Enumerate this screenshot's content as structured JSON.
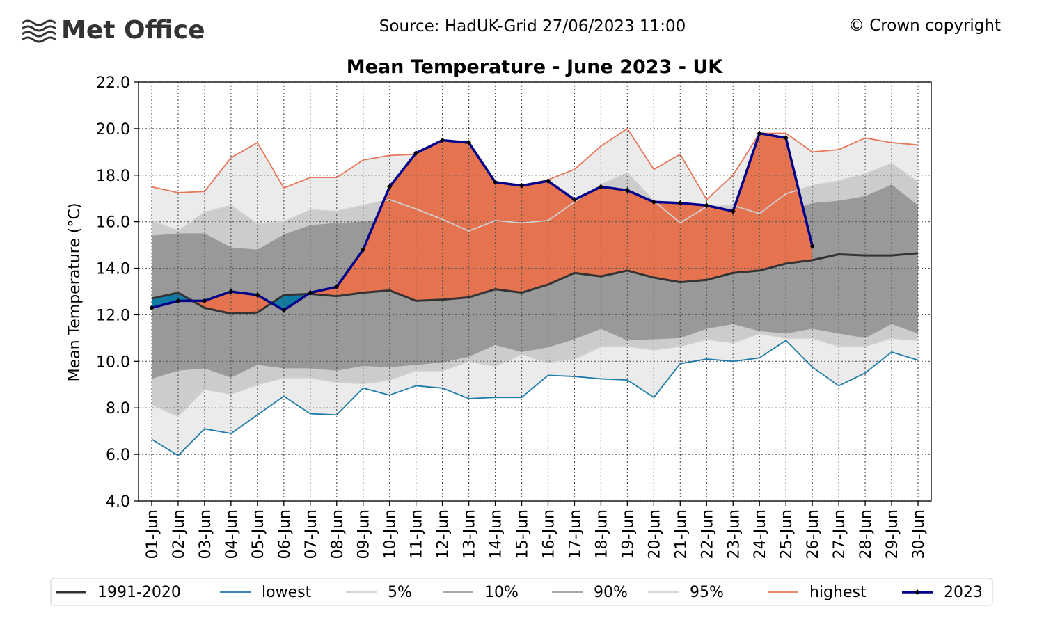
{
  "header": {
    "logo": "Met Office",
    "source": "Source: HadUK-Grid 27/06/2023 11:00",
    "copyright": "© Crown copyright"
  },
  "chart_data": {
    "type": "line",
    "title": "Mean Temperature - June 2023 - UK",
    "ylabel": "Mean Temperature (°C)",
    "categories": [
      "01-Jun",
      "02-Jun",
      "03-Jun",
      "04-Jun",
      "05-Jun",
      "06-Jun",
      "07-Jun",
      "08-Jun",
      "09-Jun",
      "10-Jun",
      "11-Jun",
      "12-Jun",
      "13-Jun",
      "14-Jun",
      "15-Jun",
      "16-Jun",
      "17-Jun",
      "18-Jun",
      "19-Jun",
      "20-Jun",
      "21-Jun",
      "22-Jun",
      "23-Jun",
      "24-Jun",
      "25-Jun",
      "26-Jun",
      "27-Jun",
      "28-Jun",
      "29-Jun",
      "30-Jun"
    ],
    "ylim": [
      4,
      22
    ],
    "yticks": [
      {
        "value": 4,
        "label": "4.0"
      },
      {
        "value": 6,
        "label": "6.0"
      },
      {
        "value": 8,
        "label": "8.0"
      },
      {
        "value": 10,
        "label": "10.0"
      },
      {
        "value": 12,
        "label": "12.0"
      },
      {
        "value": 14,
        "label": "14.0"
      },
      {
        "value": 16,
        "label": "16.0"
      },
      {
        "value": 18,
        "label": "18.0"
      },
      {
        "value": 20,
        "label": "20.0"
      },
      {
        "value": 22,
        "label": "22.0"
      }
    ],
    "grid": true,
    "series": [
      {
        "name": "1991-2020",
        "color": "#333333",
        "values": [
          12.7,
          12.95,
          12.3,
          12.05,
          12.1,
          12.85,
          12.9,
          12.8,
          12.95,
          13.05,
          12.6,
          12.65,
          12.75,
          13.1,
          12.95,
          13.3,
          13.8,
          13.65,
          13.9,
          13.6,
          13.4,
          13.5,
          13.8,
          13.9,
          14.2,
          14.35,
          14.6,
          14.55,
          14.55,
          14.65
        ]
      },
      {
        "name": "lowest",
        "color": "#1f7ca8",
        "values": [
          6.65,
          5.95,
          7.1,
          6.9,
          7.7,
          8.5,
          7.75,
          7.7,
          8.85,
          8.55,
          8.95,
          8.85,
          8.4,
          8.45,
          8.45,
          9.4,
          9.35,
          9.25,
          9.2,
          8.45,
          9.9,
          10.1,
          10.0,
          10.15,
          10.9,
          9.75,
          8.95,
          9.5,
          10.4,
          10.05
        ]
      },
      {
        "name": "5%",
        "color": "#d0d0d0",
        "values": [
          8.15,
          7.65,
          8.8,
          8.6,
          9.0,
          9.3,
          9.3,
          9.1,
          9.05,
          9.2,
          9.6,
          9.6,
          10.0,
          9.8,
          10.3,
          9.95,
          10.1,
          10.65,
          10.65,
          10.5,
          10.65,
          10.95,
          10.8,
          11.2,
          11.0,
          11.0,
          10.65,
          10.65,
          11.0,
          10.9
        ]
      },
      {
        "name": "10%",
        "color": "#999999",
        "values": [
          9.25,
          9.6,
          9.7,
          9.3,
          9.85,
          9.7,
          9.7,
          9.6,
          9.8,
          9.75,
          9.85,
          9.95,
          10.2,
          10.7,
          10.4,
          10.6,
          10.95,
          11.4,
          10.9,
          10.95,
          11.0,
          11.4,
          11.6,
          11.3,
          11.2,
          11.4,
          11.2,
          11.0,
          11.6,
          11.2
        ]
      },
      {
        "name": "90%",
        "color": "#999999",
        "values": [
          15.4,
          15.5,
          15.5,
          14.9,
          14.8,
          15.45,
          15.85,
          15.95,
          16.0,
          16.05,
          15.85,
          15.4,
          15.35,
          15.9,
          15.35,
          15.7,
          16.8,
          16.6,
          16.5,
          16.4,
          15.4,
          16.0,
          16.1,
          15.95,
          16.4,
          16.8,
          16.9,
          17.1,
          17.6,
          16.7
        ]
      },
      {
        "name": "95%",
        "color": "#d0d0d0",
        "values": [
          16.05,
          15.6,
          16.4,
          16.7,
          15.9,
          16.0,
          16.5,
          16.45,
          16.7,
          16.95,
          16.55,
          16.1,
          15.6,
          16.05,
          15.95,
          16.05,
          16.85,
          17.6,
          18.1,
          16.9,
          15.95,
          16.65,
          16.7,
          16.35,
          17.2,
          17.55,
          17.75,
          18.05,
          18.5,
          17.7
        ]
      },
      {
        "name": "highest",
        "color": "#e8775a",
        "values": [
          17.5,
          17.25,
          17.3,
          18.75,
          19.4,
          17.45,
          17.9,
          17.9,
          18.65,
          18.85,
          18.9,
          19.45,
          19.4,
          17.65,
          17.55,
          17.8,
          18.25,
          19.25,
          20.0,
          18.25,
          18.9,
          16.95,
          18.0,
          19.8,
          19.8,
          19.0,
          19.1,
          19.6,
          19.4,
          19.3
        ]
      },
      {
        "name": "2023",
        "color": "#00008b",
        "values": [
          12.3,
          12.6,
          12.6,
          13.0,
          12.85,
          12.2,
          12.95,
          13.2,
          14.8,
          17.5,
          18.95,
          19.5,
          19.4,
          17.7,
          17.55,
          17.75,
          16.95,
          17.5,
          17.35,
          16.85,
          16.8,
          16.7,
          16.45,
          19.8,
          19.6,
          14.95,
          null,
          null,
          null,
          null
        ]
      }
    ]
  }
}
